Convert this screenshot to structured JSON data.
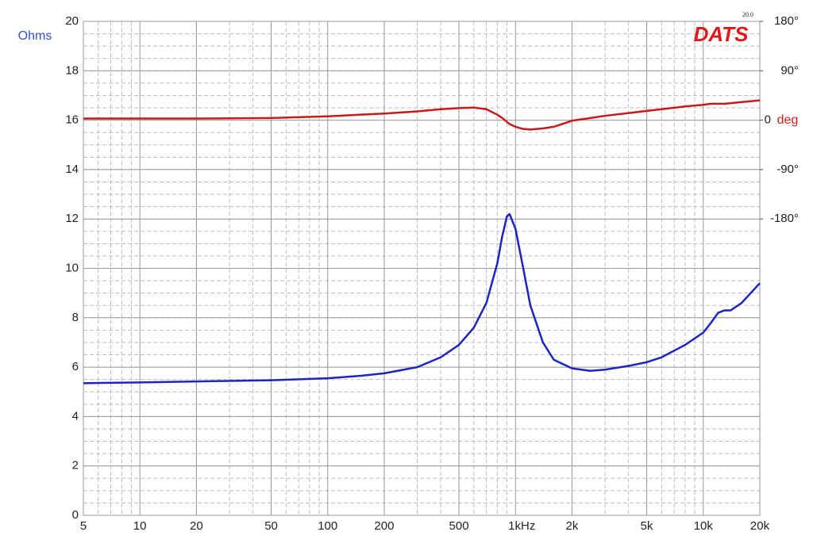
{
  "chart_data": {
    "type": "line",
    "logo": "DATS",
    "version": "20.0",
    "y_label": "Ohms",
    "y2_label": "deg",
    "x_scale": "log",
    "grid": true,
    "xlim": [
      5,
      20000
    ],
    "xticks": [
      5,
      10,
      20,
      50,
      100,
      200,
      500,
      {
        "value": 1000,
        "label": "1kHz"
      },
      {
        "value": 2000,
        "label": "2k"
      },
      {
        "value": 5000,
        "label": "5k"
      },
      {
        "value": 10000,
        "label": "10k"
      },
      {
        "value": 20000,
        "label": "20k"
      }
    ],
    "ylim": [
      0,
      20
    ],
    "yticks": [
      0,
      2,
      4,
      6,
      8,
      10,
      12,
      14,
      16,
      18,
      20
    ],
    "y2lim": [
      -720,
      180
    ],
    "y2ticks": [
      {
        "value": -180,
        "label": "-180°"
      },
      {
        "value": -90,
        "label": "-90°"
      },
      0,
      {
        "value": 90,
        "label": "90°"
      },
      {
        "value": 180,
        "label": "180°"
      }
    ],
    "x": [
      5,
      10,
      20,
      50,
      100,
      150,
      200,
      300,
      400,
      500,
      600,
      700,
      800,
      850,
      900,
      930,
      1000,
      1100,
      1200,
      1400,
      1600,
      2000,
      2500,
      3000,
      4000,
      5000,
      6000,
      8000,
      10000,
      11000,
      12000,
      13000,
      14000,
      16000,
      20000
    ],
    "series": [
      {
        "color": "#1c24c4",
        "values": [
          5.35,
          5.38,
          5.42,
          5.47,
          5.55,
          5.65,
          5.75,
          6.0,
          6.4,
          6.9,
          7.6,
          8.6,
          10.2,
          11.3,
          12.1,
          12.2,
          11.6,
          10.0,
          8.5,
          7.0,
          6.3,
          5.95,
          5.85,
          5.9,
          6.05,
          6.2,
          6.4,
          6.9,
          7.4,
          7.8,
          8.2,
          8.3,
          8.3,
          8.6,
          9.4
        ]
      },
      {
        "color": "#c81a1a",
        "axis": "y2",
        "values": [
          3,
          3,
          3,
          4,
          7,
          10,
          12,
          16,
          20,
          22,
          23,
          20,
          10,
          4,
          -3,
          -7,
          -12,
          -16,
          -17,
          -15,
          -12,
          -1,
          4,
          8,
          13,
          17,
          20,
          25,
          28,
          30,
          30,
          30,
          31,
          33,
          36
        ]
      }
    ]
  }
}
